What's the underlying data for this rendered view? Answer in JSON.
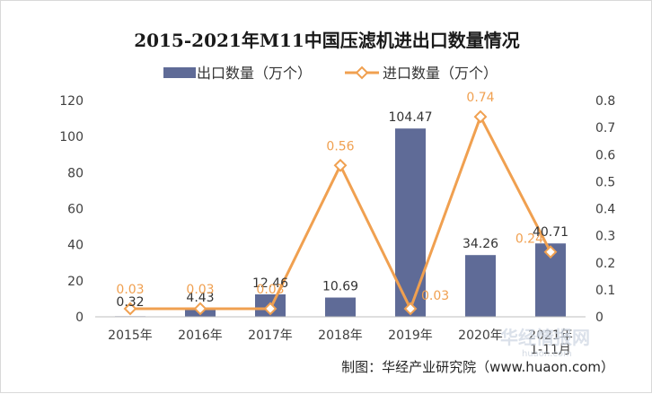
{
  "chart_data": {
    "type": "bar+line",
    "title": "2015-2021年M11中国压滤机进出口数量情况",
    "categories": [
      "2015年",
      "2016年",
      "2017年",
      "2018年",
      "2019年",
      "2020年",
      "2021年\n1-11月"
    ],
    "series": [
      {
        "name": "出口数量（万个）",
        "type": "bar",
        "axis": "left",
        "color": "#5F6B97",
        "values": [
          0.32,
          4.43,
          12.46,
          10.69,
          104.47,
          34.26,
          40.71
        ],
        "labels": [
          "0.32",
          "4.43",
          "12.46",
          "10.69",
          "104.47",
          "34.26",
          "40.71"
        ]
      },
      {
        "name": "进口数量（万个）",
        "type": "line",
        "axis": "right",
        "color": "#F0A050",
        "values": [
          0.03,
          0.03,
          0.03,
          0.56,
          0.03,
          0.74,
          0.24
        ],
        "labels": [
          "0.03",
          "0.03",
          "0.03",
          "0.56",
          "0.03",
          "0.74",
          "0.24"
        ]
      }
    ],
    "y_left": {
      "min": 0,
      "max": 120,
      "ticks": [
        "0",
        "20",
        "40",
        "60",
        "80",
        "100",
        "120"
      ]
    },
    "y_right": {
      "min": 0,
      "max": 0.8,
      "ticks": [
        "0",
        "0.1",
        "0.2",
        "0.3",
        "0.4",
        "0.5",
        "0.6",
        "0.7",
        "0.8"
      ]
    },
    "grid": false,
    "legend": "top-center"
  },
  "source": "制图：华经产业研究院（www.huaon.com）",
  "watermark": {
    "main": "华经情报网",
    "sub": "huaon.com"
  }
}
